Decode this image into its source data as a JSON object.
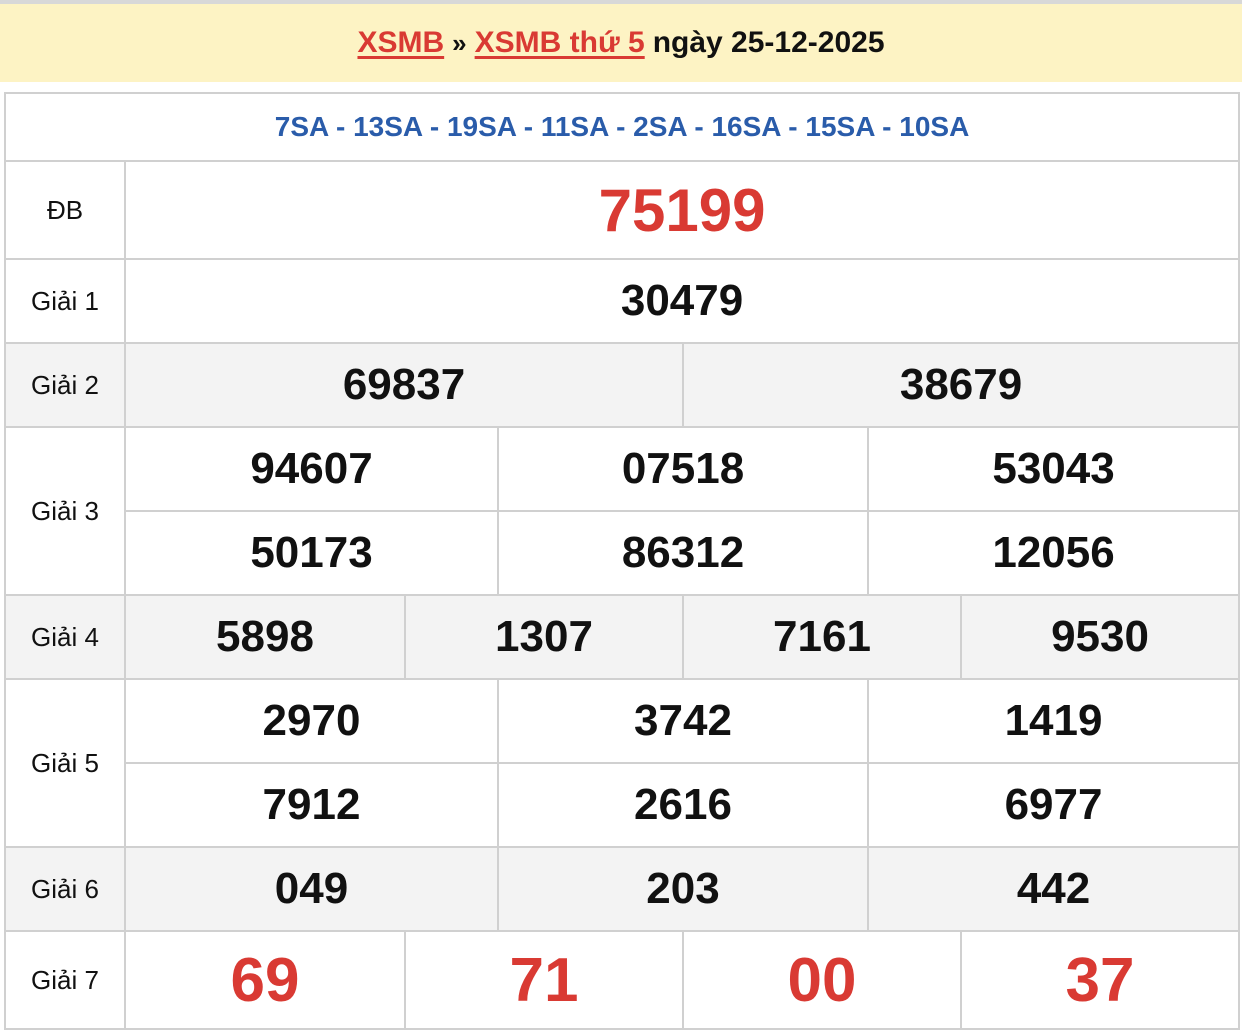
{
  "header": {
    "link1": "XSMB",
    "separator": "»",
    "link2": "XSMB thứ 5",
    "date_text": "ngày 25-12-2025"
  },
  "codes": "7SA - 13SA - 19SA - 11SA - 2SA - 16SA - 15SA - 10SA",
  "prizes": {
    "db": {
      "label": "ĐB",
      "numbers": [
        "75199"
      ]
    },
    "g1": {
      "label": "Giải 1",
      "numbers": [
        "30479"
      ]
    },
    "g2": {
      "label": "Giải 2",
      "numbers": [
        "69837",
        "38679"
      ]
    },
    "g3": {
      "label": "Giải 3",
      "numbers": [
        "94607",
        "07518",
        "53043",
        "50173",
        "86312",
        "12056"
      ]
    },
    "g4": {
      "label": "Giải 4",
      "numbers": [
        "5898",
        "1307",
        "7161",
        "9530"
      ]
    },
    "g5": {
      "label": "Giải 5",
      "numbers": [
        "2970",
        "3742",
        "1419",
        "7912",
        "2616",
        "6977"
      ]
    },
    "g6": {
      "label": "Giải 6",
      "numbers": [
        "049",
        "203",
        "442"
      ]
    },
    "g7": {
      "label": "Giải 7",
      "numbers": [
        "69",
        "71",
        "00",
        "37"
      ]
    }
  },
  "colors": {
    "accent_red": "#d93a33",
    "code_blue": "#2a5caa",
    "banner_bg": "#fdf3c4",
    "alt_row_bg": "#f3f3f3"
  }
}
